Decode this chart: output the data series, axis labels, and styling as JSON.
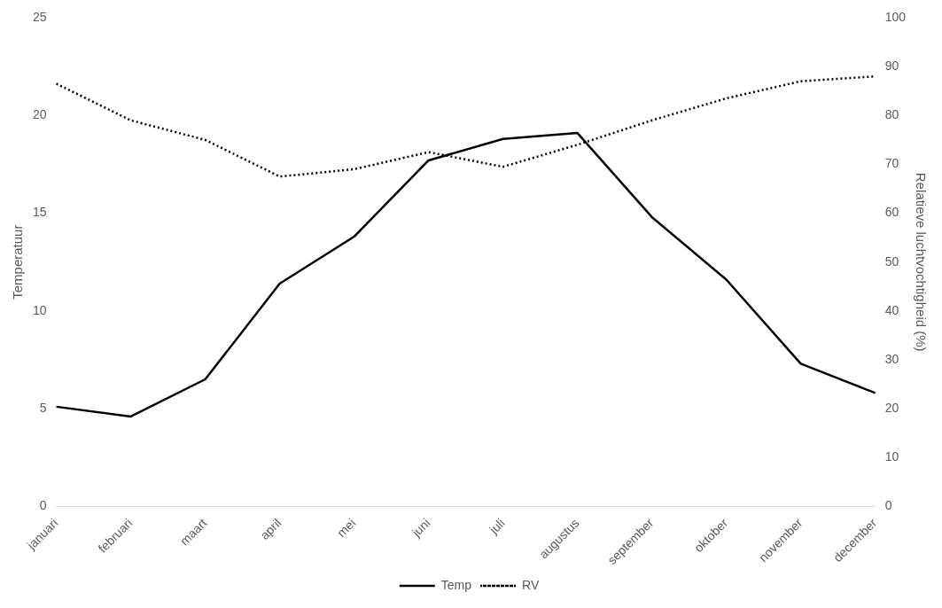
{
  "chart_data": {
    "type": "line",
    "ylabel": "Temperatuur",
    "y2label": "Relatieve luchtvochtigheid (%)",
    "categories": [
      "januari",
      "februari",
      "maart",
      "april",
      "mei",
      "juni",
      "juli",
      "augustus",
      "september",
      "oktober",
      "november",
      "december"
    ],
    "series": [
      {
        "name": "Temp",
        "color": "#000000",
        "line_style": "solid",
        "values": [
          5.1,
          4.6,
          6.5,
          11.4,
          13.8,
          17.7,
          18.8,
          19.1,
          14.8,
          11.6,
          7.3,
          5.8
        ]
      },
      {
        "name": "RV",
        "color": "#000000",
        "line_style": "dotted",
        "axis": "y2",
        "values": [
          86.5,
          79,
          75,
          67.5,
          69,
          72.5,
          69.5,
          74,
          79,
          83.5,
          87,
          88
        ]
      }
    ],
    "ylim": [
      0,
      25
    ],
    "yticks": [
      0,
      5,
      10,
      15,
      20,
      25
    ],
    "y2lim": [
      0,
      100
    ],
    "y2ticks": [
      0,
      10,
      20,
      30,
      40,
      50,
      60,
      70,
      80,
      90,
      100
    ],
    "grid": false,
    "marker": "none",
    "legend": "bottom"
  }
}
